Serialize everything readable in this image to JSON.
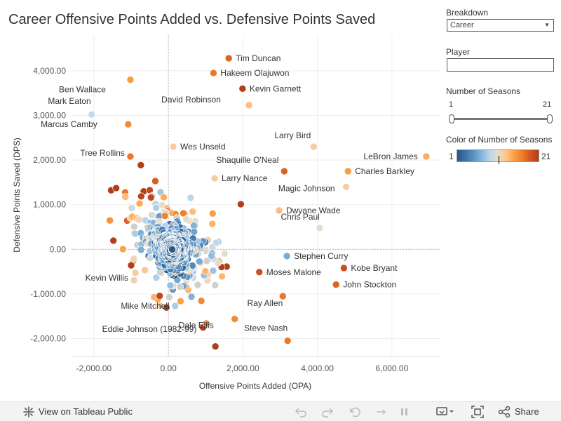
{
  "title": "Career Offensive Points Added vs. Defensive Points Saved",
  "panel": {
    "breakdown_label": "Breakdown",
    "breakdown_value": "Career",
    "player_label": "Player",
    "player_value": "",
    "seasons_label": "Number of Seasons",
    "seasons_min": "1",
    "seasons_max": "21",
    "color_label": "Color of Number of Seasons",
    "color_min": "1",
    "color_max": "21"
  },
  "footer": {
    "view_label": "View on Tableau Public",
    "share_label": "Share"
  },
  "icons": [
    "tableau-logo-icon",
    "undo-icon",
    "redo-icon",
    "revert-icon",
    "refresh-icon",
    "download-icon",
    "fullscreen-icon",
    "share-icon"
  ],
  "colors": {
    "low": "#2a5783",
    "mid": "#e5ddd0",
    "high": "#b13d1b",
    "gray": "#cfcfcb"
  },
  "chart_data": {
    "type": "scatter",
    "title": "Career Offensive Points Added vs. Defensive Points Saved",
    "xlabel": "Offensive Points Added (OPA)",
    "ylabel": "Defensive Points Saved (DPS)",
    "xlim": [
      -2600,
      7300
    ],
    "ylim": [
      -2400,
      4800
    ],
    "xticks": [
      -2000,
      0,
      2000,
      4000,
      6000
    ],
    "yticks": [
      -2000,
      -1000,
      0,
      1000,
      2000,
      3000,
      4000
    ],
    "xtick_labels": [
      "-2,000.00",
      "0.00",
      "2,000.00",
      "4,000.00",
      "6,000.00"
    ],
    "ytick_labels": [
      "-2,000.00",
      "-1,000.00",
      "0.00",
      "1,000.00",
      "2,000.00",
      "3,000.00",
      "4,000.00"
    ],
    "zero_lines": true,
    "grid": true,
    "color_by": "Number of Seasons",
    "color_range": [
      1,
      21
    ],
    "labeled_points": [
      {
        "name": "Tim Duncan",
        "x": 1620,
        "y": 4280,
        "seasons": 19
      },
      {
        "name": "Hakeem Olajuwon",
        "x": 1210,
        "y": 3950,
        "seasons": 18
      },
      {
        "name": "Ben Wallace",
        "x": -1020,
        "y": 3800,
        "seasons": 16
      },
      {
        "name": "Kevin Garnett",
        "x": 1990,
        "y": 3600,
        "seasons": 21
      },
      {
        "name": "Mark Eaton",
        "x": -2060,
        "y": 3020,
        "seasons": 11
      },
      {
        "name": "David Robinson",
        "x": 2160,
        "y": 3230,
        "seasons": 14
      },
      {
        "name": "Marcus Camby",
        "x": -1080,
        "y": 2800,
        "seasons": 17
      },
      {
        "name": "Larry Bird",
        "x": 3900,
        "y": 2300,
        "seasons": 13
      },
      {
        "name": "Wes Unseld",
        "x": 130,
        "y": 2300,
        "seasons": 13
      },
      {
        "name": "Tree Rollins",
        "x": -1020,
        "y": 2080,
        "seasons": 18
      },
      {
        "name": "Shaquille O'Neal",
        "x": 3110,
        "y": 1750,
        "seasons": 19
      },
      {
        "name": "LeBron James",
        "x": 6920,
        "y": 2080,
        "seasons": 15
      },
      {
        "name": "Charles Barkley",
        "x": 4820,
        "y": 1750,
        "seasons": 16
      },
      {
        "name": "Larry Nance",
        "x": 1240,
        "y": 1590,
        "seasons": 13
      },
      {
        "name": "Magic Johnson",
        "x": 4770,
        "y": 1400,
        "seasons": 13
      },
      {
        "name": "Dwyane Wade",
        "x": 2970,
        "y": 870,
        "seasons": 14
      },
      {
        "name": "Chris Paul",
        "x": 4060,
        "y": 480,
        "seasons": 12
      },
      {
        "name": "Stephen Curry",
        "x": 3180,
        "y": -150,
        "seasons": 8
      },
      {
        "name": "Kevin Willis",
        "x": -1000,
        "y": -360,
        "seasons": 21
      },
      {
        "name": "Moses Malone",
        "x": 2440,
        "y": -510,
        "seasons": 20
      },
      {
        "name": "Kobe Bryant",
        "x": 4710,
        "y": -420,
        "seasons": 20
      },
      {
        "name": "John Stockton",
        "x": 4500,
        "y": -790,
        "seasons": 19
      },
      {
        "name": "Mike Mitchell",
        "x": 180,
        "y": -1270,
        "seasons": 10
      },
      {
        "name": "Ray Allen",
        "x": 3070,
        "y": -1050,
        "seasons": 18
      },
      {
        "name": "Eddie Johnson (1982-99)",
        "x": 1020,
        "y": -1660,
        "seasons": 17
      },
      {
        "name": "Dale Ellis",
        "x": 1780,
        "y": -1560,
        "seasons": 17
      },
      {
        "name": "Steve Nash",
        "x": 3200,
        "y": -2050,
        "seasons": 18
      }
    ],
    "unlabeled_points_note_count": 600
  }
}
